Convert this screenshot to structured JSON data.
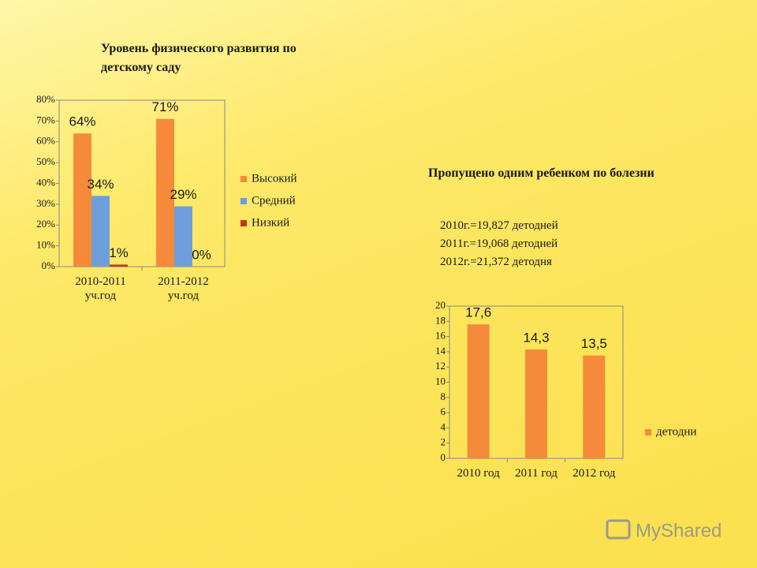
{
  "chart_data": [
    {
      "type": "bar",
      "title": "Уровень физического развития по детскому саду",
      "categories": [
        "2010-2011 уч.год",
        "2011-2012 уч.год"
      ],
      "series": [
        {
          "name": "Высокий",
          "color": "#f58a3a",
          "values": [
            64,
            71
          ],
          "value_labels": [
            "64%",
            "71%"
          ]
        },
        {
          "name": "Средний",
          "color": "#6e9edc",
          "values": [
            34,
            29
          ],
          "value_labels": [
            "34%",
            "29%"
          ]
        },
        {
          "name": "Низкий",
          "color": "#c0391c",
          "values": [
            1,
            0
          ],
          "value_labels": [
            "1%",
            "0%"
          ]
        }
      ],
      "ylim": [
        0,
        80
      ],
      "yticks": [
        {
          "value": 0,
          "label": "0%"
        },
        {
          "value": 10,
          "label": "10%"
        },
        {
          "value": 20,
          "label": "20%"
        },
        {
          "value": 30,
          "label": "30%"
        },
        {
          "value": 40,
          "label": "40%"
        },
        {
          "value": 50,
          "label": "50%"
        },
        {
          "value": 60,
          "label": "60%"
        },
        {
          "value": 70,
          "label": "70%"
        },
        {
          "value": 80,
          "label": "80%"
        }
      ],
      "grid": false,
      "legend": "right"
    },
    {
      "type": "bar",
      "title": "Пропущено одним ребенком по болезни",
      "annotations": [
        "2010г.=19,827 детодней",
        "2011г.=19,068 детодней",
        "2012г.=21,372 детодня"
      ],
      "categories": [
        "2010 год",
        "2011 год",
        "2012 год"
      ],
      "series": [
        {
          "name": "детодни",
          "color": "#f58a3a",
          "values": [
            17.6,
            14.3,
            13.5
          ],
          "value_labels": [
            "17,6",
            "14,3",
            "13,5"
          ]
        }
      ],
      "ylim": [
        0,
        20
      ],
      "yticks": [
        0,
        2,
        4,
        6,
        8,
        10,
        12,
        14,
        16,
        18,
        20
      ],
      "grid": false,
      "legend": "right"
    }
  ],
  "watermark": "MyShared"
}
